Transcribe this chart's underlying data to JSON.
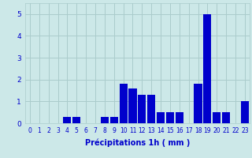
{
  "hours": [
    0,
    1,
    2,
    3,
    4,
    5,
    6,
    7,
    8,
    9,
    10,
    11,
    12,
    13,
    14,
    15,
    16,
    17,
    18,
    19,
    20,
    21,
    22,
    23
  ],
  "values": [
    0,
    0,
    0,
    0,
    0.3,
    0.3,
    0,
    0,
    0.3,
    0.3,
    1.8,
    1.6,
    1.3,
    1.3,
    0.5,
    0.5,
    0.5,
    0,
    1.8,
    5.0,
    0.5,
    0.5,
    0,
    1.0
  ],
  "bar_color": "#0000cc",
  "background_color": "#cce8e8",
  "grid_color": "#aacccc",
  "xlabel": "Précipitations 1h ( mm )",
  "xlabel_color": "#0000cc",
  "ylim": [
    0,
    5.5
  ],
  "xlim": [
    -0.5,
    23.5
  ],
  "tick_color": "#0000cc",
  "yticks": [
    0,
    1,
    2,
    3,
    4,
    5
  ],
  "xticks": [
    0,
    1,
    2,
    3,
    4,
    5,
    6,
    7,
    8,
    9,
    10,
    11,
    12,
    13,
    14,
    15,
    16,
    17,
    18,
    19,
    20,
    21,
    22,
    23
  ],
  "tick_fontsize": 5.5,
  "ytick_fontsize": 6.5,
  "xlabel_fontsize": 7
}
